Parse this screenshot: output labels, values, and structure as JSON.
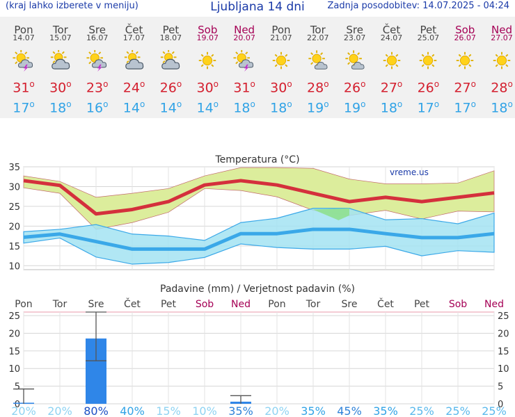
{
  "header": {
    "left_note": "(kraj lahko izberete v meniju)",
    "title": "Ljubljana 14 dni",
    "updated": "Zadnja posodobitev: 14.07.2025 - 04:24"
  },
  "forecast": [
    {
      "day": "Pon",
      "date": "14.07",
      "weekend": false,
      "icon": "sun-cloud-lightning-icon",
      "max": "31",
      "min": "17"
    },
    {
      "day": "Tor",
      "date": "15.07",
      "weekend": false,
      "icon": "cloud-sun-icon",
      "max": "30",
      "min": "18"
    },
    {
      "day": "Sre",
      "date": "16.07",
      "weekend": false,
      "icon": "sun-cloud-lightning-icon",
      "max": "23",
      "min": "16"
    },
    {
      "day": "Čet",
      "date": "17.07",
      "weekend": false,
      "icon": "cloud-sun-icon",
      "max": "24",
      "min": "14"
    },
    {
      "day": "Pet",
      "date": "18.07",
      "weekend": false,
      "icon": "cloud-sun-icon",
      "max": "26",
      "min": "14"
    },
    {
      "day": "Sob",
      "date": "19.07",
      "weekend": true,
      "icon": "sun-icon",
      "max": "30",
      "min": "14"
    },
    {
      "day": "Ned",
      "date": "20.07",
      "weekend": true,
      "icon": "sun-cloud-lightning-icon",
      "max": "31",
      "min": "18"
    },
    {
      "day": "Pon",
      "date": "21.07",
      "weekend": false,
      "icon": "sun-icon",
      "max": "30",
      "min": "18"
    },
    {
      "day": "Tor",
      "date": "22.07",
      "weekend": false,
      "icon": "sun-small-cloud-icon",
      "max": "28",
      "min": "19"
    },
    {
      "day": "Sre",
      "date": "23.07",
      "weekend": false,
      "icon": "sun-small-cloud-icon",
      "max": "26",
      "min": "19"
    },
    {
      "day": "Čet",
      "date": "24.07",
      "weekend": false,
      "icon": "sun-icon",
      "max": "27",
      "min": "18"
    },
    {
      "day": "Pet",
      "date": "25.07",
      "weekend": false,
      "icon": "sun-icon",
      "max": "26",
      "min": "17"
    },
    {
      "day": "Sob",
      "date": "26.07",
      "weekend": true,
      "icon": "sun-icon",
      "max": "27",
      "min": "17"
    },
    {
      "day": "Ned",
      "date": "27.07",
      "weekend": true,
      "icon": "sun-icon",
      "max": "28",
      "min": "18"
    }
  ],
  "chart_data": [
    {
      "type": "line",
      "title": "Temperatura (°C)",
      "watermark": "vreme.us",
      "ylim": [
        9,
        35
      ],
      "yticks": [
        10,
        15,
        20,
        25,
        30,
        35
      ],
      "grid": true,
      "series": [
        {
          "role": "max",
          "color": "#d4303c",
          "values": [
            31.5,
            30.3,
            23.1,
            24.2,
            26.2,
            30.4,
            31.5,
            30.4,
            28.3,
            26.2,
            27.3,
            26.2,
            27.3,
            28.4
          ]
        },
        {
          "role": "max_upper",
          "values": [
            32.7,
            31.3,
            27.3,
            28.3,
            29.5,
            32.7,
            34.8,
            34.8,
            34.6,
            31.9,
            30.7,
            30.7,
            30.9,
            34.0
          ]
        },
        {
          "role": "max_lower",
          "values": [
            29.7,
            28.3,
            19.2,
            20.9,
            23.5,
            29.5,
            29.0,
            27.4,
            24.0,
            22.7,
            24.0,
            21.8,
            23.8,
            23.6
          ]
        },
        {
          "role": "min",
          "color": "#3aa8e8",
          "values": [
            17.2,
            18.0,
            16.1,
            14.2,
            14.2,
            14.2,
            18.1,
            18.1,
            19.2,
            19.2,
            18.1,
            17.1,
            17.1,
            18.1
          ]
        },
        {
          "role": "min_upper",
          "values": [
            18.6,
            19.2,
            20.4,
            18.0,
            17.5,
            16.4,
            20.9,
            22.0,
            24.5,
            24.5,
            21.6,
            21.9,
            20.6,
            23.3
          ]
        },
        {
          "role": "min_lower",
          "values": [
            15.7,
            17.0,
            12.2,
            10.4,
            10.8,
            12.1,
            15.5,
            14.6,
            14.2,
            14.2,
            14.9,
            12.5,
            13.8,
            13.4
          ]
        }
      ]
    },
    {
      "type": "bar",
      "title": "Padavine (mm) / Verjetnost padavin (%)",
      "ylim": [
        0,
        26
      ],
      "yticks": [
        0,
        5,
        10,
        15,
        20,
        25
      ],
      "grid": true,
      "categories": [
        "Pon",
        "Tor",
        "Sre",
        "Čet",
        "Pet",
        "Sob",
        "Ned",
        "Pon",
        "Tor",
        "Sre",
        "Čet",
        "Pet",
        "Sob",
        "Ned"
      ],
      "weekend": [
        false,
        false,
        false,
        false,
        false,
        true,
        true,
        false,
        false,
        false,
        false,
        false,
        true,
        true
      ],
      "values": [
        0.3,
        0,
        18.5,
        0,
        0,
        0,
        0.6,
        0,
        0,
        0,
        0,
        0,
        0,
        0
      ],
      "err_low": [
        0,
        0,
        12.2,
        0,
        0,
        0,
        0,
        0,
        0,
        0,
        0,
        0,
        0,
        0
      ],
      "err_high": [
        4.2,
        0,
        26,
        0,
        0,
        0,
        2.3,
        0,
        0,
        0,
        0,
        0,
        0,
        0
      ],
      "probability": [
        "20%",
        "20%",
        "80%",
        "40%",
        "15%",
        "10%",
        "35%",
        "20%",
        "35%",
        "45%",
        "35%",
        "25%",
        "25%",
        "25%"
      ],
      "probability_colors": [
        "#8fd3f2",
        "#8fd3f2",
        "#1b4fc4",
        "#31a3e6",
        "#8fd3f2",
        "#8fd3f2",
        "#2f82d8",
        "#8fd3f2",
        "#31a3e6",
        "#2f82d8",
        "#31a3e6",
        "#5bb9ec",
        "#5bb9ec",
        "#5bb9ec"
      ]
    }
  ],
  "colors": {
    "weekend": "#a50055",
    "max_band": "#dced9c",
    "min_band": "#a3e3f2",
    "overlap": "#8fe08f",
    "bar": "#2f86e8"
  }
}
